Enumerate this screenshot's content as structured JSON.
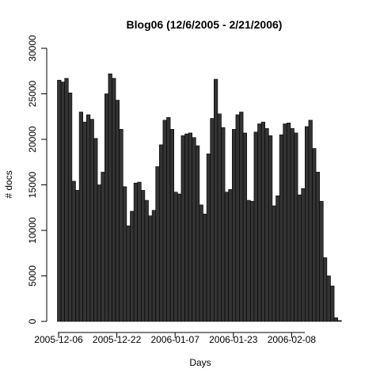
{
  "chart_data": {
    "type": "bar",
    "title": "Blog06 (12/6/2005 - 2/21/2006)",
    "xlabel": "Days",
    "ylabel": "# docs",
    "ylim": [
      0,
      30000
    ],
    "yticks": [
      "0",
      "5000",
      "10000",
      "15000",
      "20000",
      "25000",
      "30000"
    ],
    "xticks": [
      {
        "label": "2005-12-06",
        "day_index": 0
      },
      {
        "label": "2005-12-22",
        "day_index": 16
      },
      {
        "label": "2006-01-07",
        "day_index": 32
      },
      {
        "label": "2006-01-23",
        "day_index": 48
      },
      {
        "label": "2006-02-08",
        "day_index": 64
      }
    ],
    "grid": false,
    "color": "#333333",
    "values": [
      26500,
      26300,
      26700,
      25100,
      15400,
      14400,
      23000,
      21900,
      22700,
      22200,
      20100,
      15000,
      16400,
      25000,
      27200,
      26700,
      24300,
      21100,
      14800,
      10500,
      12100,
      15200,
      15300,
      14400,
      13300,
      11600,
      12200,
      17000,
      19400,
      22100,
      22400,
      21100,
      14200,
      14000,
      20400,
      20600,
      20700,
      20200,
      19300,
      12800,
      11800,
      18400,
      22300,
      26600,
      22800,
      21300,
      14200,
      14500,
      21100,
      22700,
      23000,
      20700,
      13300,
      13200,
      20800,
      21700,
      21900,
      21200,
      20400,
      12700,
      13800,
      20500,
      21700,
      21800,
      21200,
      20700,
      13900,
      14600,
      21400,
      22100,
      19000,
      16400,
      13200,
      7000,
      5000,
      3900,
      400,
      100
    ]
  }
}
